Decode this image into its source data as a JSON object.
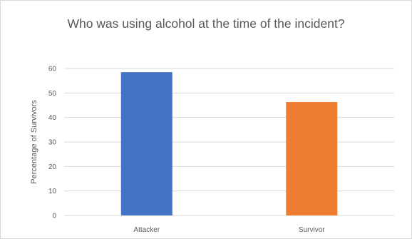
{
  "chart_data": {
    "type": "bar",
    "title": "Who was using alcohol at the time of the incident?",
    "categories": [
      "Attacker",
      "Survivor"
    ],
    "values": [
      58.5,
      46.3
    ],
    "colors": [
      "#4472c4",
      "#ed7d31"
    ],
    "xlabel": "",
    "ylabel": "Percentage  of Survivors",
    "ylim": [
      0,
      60
    ],
    "yticks": [
      0,
      10,
      20,
      30,
      40,
      50,
      60
    ],
    "grid": true,
    "legend": false
  }
}
